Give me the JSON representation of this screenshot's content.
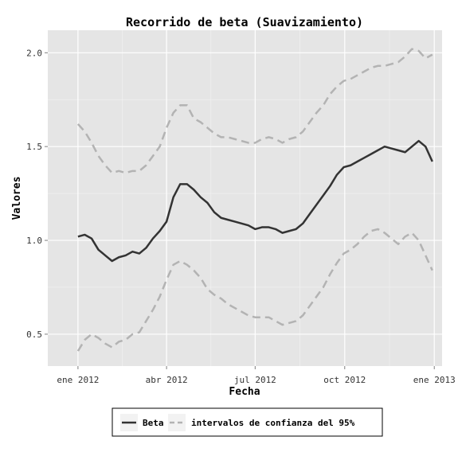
{
  "chart_data": {
    "type": "line",
    "title": "Recorrido de beta (Suavizamiento)",
    "xlabel": "Fecha",
    "ylabel": "Valores",
    "x_ticks": [
      "ene 2012",
      "abr 2012",
      "jul 2012",
      "oct 2012",
      "ene 2013"
    ],
    "x_tick_dates": [
      "2012-01-01",
      "2012-04-01",
      "2012-07-01",
      "2012-10-01",
      "2013-01-01"
    ],
    "y_ticks": [
      0.5,
      1.0,
      1.5,
      2.0
    ],
    "y_tick_labels": [
      "0.5",
      "1.0",
      "1.5",
      "2.0"
    ],
    "xlim": [
      "2011-12-01",
      "2013-01-09"
    ],
    "ylim": [
      0.33,
      2.12
    ],
    "grid": true,
    "legend_position": "bottom",
    "x": [
      "2012-01-01",
      "2012-01-08",
      "2012-01-15",
      "2012-01-22",
      "2012-01-29",
      "2012-02-05",
      "2012-02-12",
      "2012-02-19",
      "2012-02-26",
      "2012-03-04",
      "2012-03-11",
      "2012-03-18",
      "2012-03-25",
      "2012-04-01",
      "2012-04-08",
      "2012-04-15",
      "2012-04-22",
      "2012-04-29",
      "2012-05-06",
      "2012-05-13",
      "2012-05-20",
      "2012-05-27",
      "2012-06-03",
      "2012-06-10",
      "2012-06-17",
      "2012-06-24",
      "2012-07-01",
      "2012-07-08",
      "2012-07-15",
      "2012-07-22",
      "2012-07-29",
      "2012-08-05",
      "2012-08-12",
      "2012-08-19",
      "2012-08-26",
      "2012-09-02",
      "2012-09-09",
      "2012-09-16",
      "2012-09-23",
      "2012-09-30",
      "2012-10-07",
      "2012-10-14",
      "2012-10-21",
      "2012-10-28",
      "2012-11-04",
      "2012-11-11",
      "2012-11-18",
      "2012-11-25",
      "2012-12-02",
      "2012-12-09",
      "2012-12-16",
      "2012-12-23",
      "2012-12-30"
    ],
    "series": [
      {
        "name": "Beta",
        "color": "#333333",
        "dash": "solid",
        "values": [
          1.02,
          1.03,
          1.01,
          0.95,
          0.92,
          0.89,
          0.91,
          0.92,
          0.94,
          0.93,
          0.96,
          1.01,
          1.05,
          1.1,
          1.23,
          1.3,
          1.3,
          1.27,
          1.23,
          1.2,
          1.15,
          1.12,
          1.11,
          1.1,
          1.09,
          1.08,
          1.06,
          1.07,
          1.07,
          1.06,
          1.04,
          1.05,
          1.06,
          1.09,
          1.14,
          1.19,
          1.24,
          1.29,
          1.35,
          1.39,
          1.4,
          1.42,
          1.44,
          1.46,
          1.48,
          1.5,
          1.49,
          1.48,
          1.47,
          1.5,
          1.53,
          1.5,
          1.42
        ]
      },
      {
        "name": "intervalos de confianza del 95%",
        "color": "#b3b3b3",
        "dash": "dashed",
        "values": [
          1.62,
          1.58,
          1.52,
          1.45,
          1.4,
          1.36,
          1.37,
          1.36,
          1.37,
          1.37,
          1.4,
          1.45,
          1.5,
          1.6,
          1.68,
          1.72,
          1.72,
          1.65,
          1.63,
          1.6,
          1.57,
          1.55,
          1.55,
          1.54,
          1.53,
          1.52,
          1.52,
          1.54,
          1.55,
          1.54,
          1.52,
          1.54,
          1.55,
          1.58,
          1.63,
          1.68,
          1.72,
          1.78,
          1.82,
          1.85,
          1.86,
          1.88,
          1.9,
          1.92,
          1.93,
          1.93,
          1.94,
          1.95,
          1.98,
          2.02,
          2.01,
          1.97,
          1.99
        ]
      },
      {
        "name": "",
        "color": "#b3b3b3",
        "dash": "dashed",
        "values": [
          0.41,
          0.47,
          0.5,
          0.48,
          0.45,
          0.43,
          0.46,
          0.47,
          0.5,
          0.51,
          0.57,
          0.63,
          0.7,
          0.79,
          0.87,
          0.89,
          0.87,
          0.84,
          0.8,
          0.74,
          0.71,
          0.69,
          0.66,
          0.64,
          0.62,
          0.6,
          0.59,
          0.59,
          0.59,
          0.57,
          0.55,
          0.56,
          0.57,
          0.6,
          0.65,
          0.7,
          0.75,
          0.82,
          0.88,
          0.93,
          0.95,
          0.98,
          1.02,
          1.05,
          1.06,
          1.04,
          1.01,
          0.98,
          1.02,
          1.04,
          1.0,
          0.92,
          0.84
        ]
      }
    ]
  },
  "legend": {
    "items": [
      {
        "label": "Beta",
        "color": "#333333",
        "dash": "solid"
      },
      {
        "label": "intervalos de confianza del 95%",
        "color": "#b3b3b3",
        "dash": "dashed"
      }
    ]
  },
  "colors": {
    "panel_background": "#e5e5e5",
    "grid_major": "#ffffff",
    "grid_minor": "#f2f2f2"
  }
}
